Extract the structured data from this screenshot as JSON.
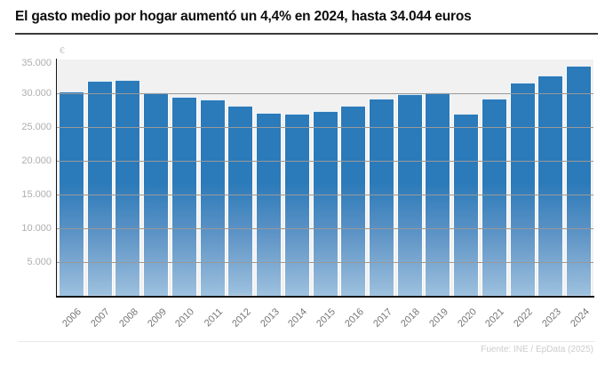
{
  "header": {
    "title": "El gasto medio por hogar aumentó un 4,4% en 2024, hasta 34.044 euros"
  },
  "footer": {
    "source": "Fuente: INE / EpData (2025)"
  },
  "colors": {
    "bar_top": "#2b7ab9",
    "bar_bottom": "#9ec2e0",
    "plot_background": "#f1f1f1",
    "gridline": "#999999",
    "axis_line": "#151515",
    "y_tick_label": "#aeaeae",
    "x_year_label": "#767676",
    "title_text": "#0d0d0d",
    "source_text": "#cccccc"
  },
  "chart_data": {
    "type": "bar",
    "title": "El gasto medio por hogar aumentó un 4,4% en 2024, hasta 34.044 euros",
    "xlabel": "",
    "ylabel": "€",
    "ylim": [
      0,
      35000
    ],
    "ytick_step": 5000,
    "yticks": [
      {
        "value": 35000,
        "label": "35.000"
      },
      {
        "value": 30000,
        "label": "30.000"
      },
      {
        "value": 25000,
        "label": "25.000"
      },
      {
        "value": 20000,
        "label": "20.000"
      },
      {
        "value": 15000,
        "label": "15.000"
      },
      {
        "value": 10000,
        "label": "10.000"
      },
      {
        "value": 5000,
        "label": "5.000"
      }
    ],
    "grid": true,
    "legend": false,
    "categories": [
      "2006",
      "2007",
      "2008",
      "2009",
      "2010",
      "2011",
      "2012",
      "2013",
      "2014",
      "2015",
      "2016",
      "2017",
      "2018",
      "2019",
      "2020",
      "2021",
      "2022",
      "2023",
      "2024"
    ],
    "values": [
      30300,
      31800,
      32000,
      30200,
      29500,
      29100,
      28100,
      27100,
      27000,
      27400,
      28200,
      29200,
      29900,
      30200,
      27000,
      29200,
      31600,
      32600,
      34044
    ],
    "units": "euros",
    "source": "Fuente: INE / EpData (2025)"
  }
}
